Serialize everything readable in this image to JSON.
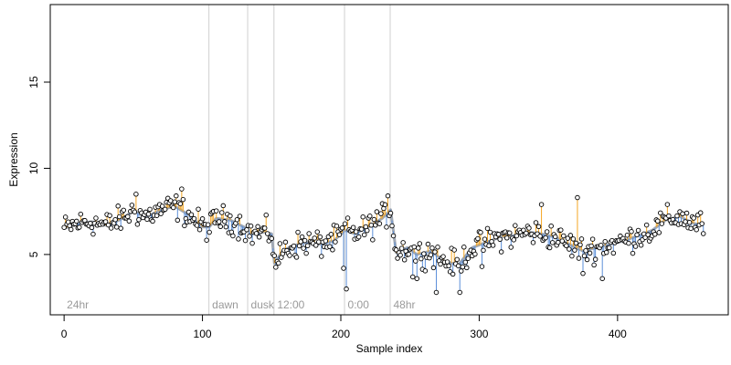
{
  "chart_data": {
    "type": "scatter",
    "title": "",
    "xlabel": "Sample index",
    "ylabel": "Expression",
    "xlim": [
      -10,
      480
    ],
    "ylim": [
      1.5,
      19.5
    ],
    "x_ticks": [
      0,
      100,
      200,
      300,
      400
    ],
    "y_ticks": [
      5,
      10,
      15
    ],
    "grid": false,
    "legend": "none",
    "colors": {
      "above_fit": "#f5a623",
      "below_fit": "#5b8fd9",
      "fit_line": "#a0a8b4",
      "marker_fill": "#ffffff",
      "marker_edge": "#000000",
      "divider": "#d0d0d0",
      "segment_label": "#9a9a9a"
    },
    "segments": [
      {
        "label": "24hr",
        "start": 0
      },
      {
        "label": "dawn",
        "start": 105
      },
      {
        "label": "dusk",
        "start": 133
      },
      {
        "label": "12:00",
        "start": 152
      },
      {
        "label": "0:00",
        "start": 203
      },
      {
        "label": "48hr",
        "start": 236
      }
    ],
    "fit_knots": {
      "x": [
        0,
        10,
        20,
        30,
        40,
        50,
        60,
        70,
        80,
        90,
        100,
        105,
        110,
        120,
        130,
        135,
        145,
        150,
        152,
        158,
        165,
        175,
        185,
        195,
        203,
        210,
        220,
        230,
        236,
        240,
        248,
        255,
        265,
        275,
        285,
        295,
        305,
        315,
        325,
        335,
        345,
        355,
        365,
        375,
        385,
        395,
        405,
        415,
        425,
        435,
        445,
        455,
        462
      ],
      "y": [
        6.5,
        6.8,
        6.9,
        6.7,
        7.0,
        7.5,
        7.2,
        7.6,
        7.8,
        7.3,
        6.6,
        6.6,
        7.1,
        7.0,
        6.6,
        6.2,
        6.3,
        6.2,
        4.5,
        5.2,
        5.5,
        5.7,
        5.6,
        5.8,
        6.4,
        6.2,
        6.6,
        7.1,
        7.6,
        5.1,
        5.4,
        5.0,
        5.2,
        4.6,
        4.4,
        5.4,
        5.7,
        6.0,
        6.1,
        6.3,
        6.2,
        6.0,
        5.6,
        5.2,
        5.4,
        5.6,
        5.8,
        6.1,
        6.4,
        7.0,
        7.2,
        6.8,
        6.7
      ]
    },
    "outliers": [
      {
        "x": 202,
        "y": 4.2
      },
      {
        "x": 204,
        "y": 3.0
      },
      {
        "x": 269,
        "y": 2.8
      },
      {
        "x": 286,
        "y": 2.8
      },
      {
        "x": 252,
        "y": 3.7
      },
      {
        "x": 255,
        "y": 3.6
      },
      {
        "x": 371,
        "y": 8.3
      },
      {
        "x": 345,
        "y": 7.9
      },
      {
        "x": 234,
        "y": 8.4
      },
      {
        "x": 85,
        "y": 8.8
      },
      {
        "x": 52,
        "y": 8.5
      },
      {
        "x": 155,
        "y": 3.8
      },
      {
        "x": 155,
        "y": 4.5
      },
      {
        "x": 389,
        "y": 3.6
      },
      {
        "x": 375,
        "y": 3.9
      },
      {
        "x": 302,
        "y": 4.3
      }
    ]
  }
}
